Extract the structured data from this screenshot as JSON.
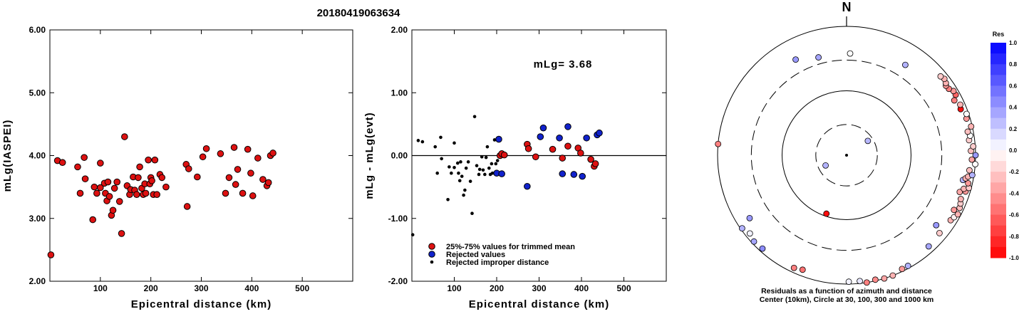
{
  "figure_title": "20180419063634",
  "chart_data": [
    {
      "type": "scatter",
      "id": "magnitude_vs_distance",
      "xlabel": "Epicentral distance (km)",
      "ylabel": "mLg(IASPEI)",
      "xlim": [
        0,
        600
      ],
      "ylim": [
        2.0,
        6.0
      ],
      "xticks": [
        100,
        200,
        300,
        400,
        500
      ],
      "yticks": [
        "2.00",
        "3.00",
        "4.00",
        "5.00",
        "6.00"
      ],
      "marker_color": "#dd1111",
      "points": [
        [
          2,
          2.42
        ],
        [
          15,
          3.92
        ],
        [
          25,
          3.89
        ],
        [
          55,
          3.82
        ],
        [
          60,
          3.4
        ],
        [
          68,
          3.97
        ],
        [
          70,
          3.63
        ],
        [
          85,
          2.98
        ],
        [
          88,
          3.5
        ],
        [
          93,
          3.4
        ],
        [
          100,
          3.88
        ],
        [
          100,
          3.49
        ],
        [
          108,
          3.56
        ],
        [
          110,
          3.4
        ],
        [
          113,
          3.28
        ],
        [
          115,
          3.58
        ],
        [
          118,
          3.35
        ],
        [
          122,
          3.05
        ],
        [
          125,
          3.13
        ],
        [
          128,
          3.48
        ],
        [
          133,
          3.58
        ],
        [
          138,
          3.27
        ],
        [
          142,
          2.76
        ],
        [
          148,
          4.3
        ],
        [
          153,
          3.52
        ],
        [
          158,
          3.38
        ],
        [
          160,
          3.46
        ],
        [
          165,
          3.66
        ],
        [
          168,
          3.45
        ],
        [
          172,
          3.38
        ],
        [
          175,
          3.65
        ],
        [
          178,
          3.82
        ],
        [
          182,
          3.48
        ],
        [
          185,
          3.38
        ],
        [
          188,
          3.55
        ],
        [
          190,
          3.4
        ],
        [
          195,
          3.93
        ],
        [
          198,
          3.55
        ],
        [
          200,
          3.65
        ],
        [
          202,
          3.6
        ],
        [
          205,
          3.38
        ],
        [
          208,
          3.93
        ],
        [
          212,
          3.38
        ],
        [
          218,
          3.7
        ],
        [
          222,
          3.65
        ],
        [
          230,
          3.5
        ],
        [
          270,
          3.86
        ],
        [
          272,
          3.19
        ],
        [
          275,
          3.79
        ],
        [
          292,
          3.66
        ],
        [
          303,
          3.98
        ],
        [
          310,
          4.11
        ],
        [
          338,
          4.03
        ],
        [
          348,
          3.4
        ],
        [
          355,
          3.65
        ],
        [
          365,
          4.13
        ],
        [
          368,
          3.54
        ],
        [
          372,
          3.78
        ],
        [
          382,
          3.4
        ],
        [
          392,
          4.1
        ],
        [
          398,
          3.72
        ],
        [
          402,
          3.36
        ],
        [
          412,
          3.96
        ],
        [
          422,
          3.62
        ],
        [
          430,
          3.52
        ],
        [
          433,
          3.57
        ],
        [
          437,
          4.0
        ],
        [
          442,
          4.04
        ]
      ]
    },
    {
      "type": "scatter",
      "id": "residual_vs_distance",
      "xlabel": "Epicentral distance (km)",
      "ylabel": "mLg - mLg(evt)",
      "xlim": [
        0,
        600
      ],
      "ylim": [
        -2.0,
        2.0
      ],
      "xticks": [
        100,
        200,
        300,
        400,
        500
      ],
      "yticks": [
        "-2.00",
        "-1.00",
        "0.00",
        "1.00",
        "2.00"
      ],
      "zero_line": 0,
      "annotation": "mLg= 3.68",
      "legend": [
        {
          "label": "25%-75% values for trimmed mean",
          "color": "#dd1111",
          "marker": "circle"
        },
        {
          "label": "Rejected values",
          "color": "#1122cc",
          "marker": "circle"
        },
        {
          "label": "Rejected improper distance",
          "color": "#000000",
          "marker": "dot"
        }
      ],
      "series": [
        {
          "name": "25%-75% values for trimmed mean",
          "color": "#dd1111",
          "points": [
            [
              208,
              0.0
            ],
            [
              212,
              0.03
            ],
            [
              218,
              0.01
            ],
            [
              272,
              0.18
            ],
            [
              275,
              0.11
            ],
            [
              292,
              -0.02
            ],
            [
              332,
              0.1
            ],
            [
              355,
              -0.04
            ],
            [
              368,
              0.15
            ],
            [
              392,
              0.12
            ],
            [
              398,
              0.04
            ],
            [
              422,
              -0.06
            ],
            [
              430,
              -0.17
            ],
            [
              433,
              -0.13
            ]
          ]
        },
        {
          "name": "Rejected values",
          "color": "#1122cc",
          "points": [
            [
              200,
              -0.28
            ],
            [
              205,
              0.26
            ],
            [
              212,
              -0.29
            ],
            [
              272,
              -0.49
            ],
            [
              303,
              0.3
            ],
            [
              310,
              0.44
            ],
            [
              348,
              0.28
            ],
            [
              355,
              -0.29
            ],
            [
              368,
              0.46
            ],
            [
              382,
              -0.3
            ],
            [
              402,
              -0.33
            ],
            [
              412,
              0.28
            ],
            [
              437,
              0.33
            ],
            [
              442,
              0.36
            ]
          ]
        },
        {
          "name": "Rejected improper distance",
          "color": "#000000",
          "points": [
            [
              2,
              -1.26
            ],
            [
              15,
              0.24
            ],
            [
              25,
              0.22
            ],
            [
              55,
              0.14
            ],
            [
              60,
              -0.28
            ],
            [
              68,
              0.29
            ],
            [
              70,
              -0.05
            ],
            [
              85,
              -0.7
            ],
            [
              88,
              -0.18
            ],
            [
              93,
              -0.28
            ],
            [
              100,
              0.2
            ],
            [
              100,
              -0.19
            ],
            [
              108,
              -0.12
            ],
            [
              110,
              -0.28
            ],
            [
              113,
              -0.4
            ],
            [
              115,
              -0.1
            ],
            [
              118,
              -0.33
            ],
            [
              122,
              -0.63
            ],
            [
              125,
              -0.55
            ],
            [
              128,
              -0.2
            ],
            [
              133,
              -0.1
            ],
            [
              138,
              -0.41
            ],
            [
              142,
              -0.92
            ],
            [
              148,
              0.62
            ],
            [
              153,
              -0.16
            ],
            [
              158,
              -0.3
            ],
            [
              160,
              -0.22
            ],
            [
              165,
              -0.02
            ],
            [
              168,
              -0.23
            ],
            [
              172,
              -0.3
            ],
            [
              175,
              -0.03
            ],
            [
              178,
              0.14
            ],
            [
              182,
              -0.2
            ],
            [
              185,
              -0.3
            ],
            [
              188,
              -0.13
            ],
            [
              190,
              -0.28
            ],
            [
              195,
              0.25
            ],
            [
              198,
              -0.13
            ],
            [
              202,
              -0.08
            ]
          ]
        }
      ]
    },
    {
      "type": "scatter",
      "id": "residual_azimuth_distance",
      "north_label": "N",
      "caption_line1": "Residuals as a function of azimuth and distance",
      "caption_line2": "Center (10km), Circle at 30, 100, 300 and 1000 km",
      "rings_km": [
        30,
        100,
        300,
        1000
      ],
      "colorbar_title": "Res",
      "colorbar_ticks": [
        "1.0",
        "0.8",
        "0.6",
        "0.4",
        "0.2",
        "0.0",
        "-0.2",
        "-0.4",
        "-0.6",
        "-0.8",
        "-1.0"
      ],
      "colorbar_range": [
        -1.0,
        1.0
      ],
      "stations": [
        {
          "az": 56,
          "dist_km": 25,
          "res": 0.28
        },
        {
          "az": 244,
          "dist_km": 23,
          "res": 0.3
        },
        {
          "az": 199,
          "dist_km": 91,
          "res": -0.95
        },
        {
          "az": 332,
          "dist_km": 480,
          "res": 0.4
        },
        {
          "az": 344,
          "dist_km": 380,
          "res": 0.35
        },
        {
          "az": 2,
          "dist_km": 380,
          "res": 0.0
        },
        {
          "az": 33,
          "dist_km": 470,
          "res": 0.3
        },
        {
          "az": 275,
          "dist_km": 1050,
          "res": -0.5
        },
        {
          "az": 237,
          "dist_km": 620,
          "res": 0.4
        },
        {
          "az": 222,
          "dist_km": 890,
          "res": 0.45
        },
        {
          "az": 231,
          "dist_km": 850,
          "res": 0.05
        },
        {
          "az": 227,
          "dist_km": 920,
          "res": 0.35
        },
        {
          "az": 235,
          "dist_km": 950,
          "res": 0.3
        },
        {
          "az": 205,
          "dist_km": 850,
          "res": -0.5
        },
        {
          "az": 201,
          "dist_km": 800,
          "res": -0.55
        },
        {
          "az": 179,
          "dist_km": 920,
          "res": 0.05
        },
        {
          "az": 174,
          "dist_km": 920,
          "res": 0.1
        },
        {
          "az": 171,
          "dist_km": 1070,
          "res": -0.5
        },
        {
          "az": 167,
          "dist_km": 960,
          "res": -0.45
        },
        {
          "az": 163,
          "dist_km": 1000,
          "res": -0.35
        },
        {
          "az": 159,
          "dist_km": 1000,
          "res": -0.3
        },
        {
          "az": 154,
          "dist_km": 920,
          "res": -0.4
        },
        {
          "az": 151,
          "dist_km": 920,
          "res": 0.3
        },
        {
          "az": 138,
          "dist_km": 800,
          "res": 0.35
        },
        {
          "az": 130,
          "dist_km": 760,
          "res": -0.2
        },
        {
          "az": 128,
          "dist_km": 580,
          "res": 0.4
        },
        {
          "az": 122,
          "dist_km": 800,
          "res": -0.3
        },
        {
          "az": 120,
          "dist_km": 840,
          "res": -0.05
        },
        {
          "az": 118,
          "dist_km": 900,
          "res": -0.3
        },
        {
          "az": 117,
          "dist_km": 740,
          "res": -0.4
        },
        {
          "az": 115,
          "dist_km": 860,
          "res": -0.25
        },
        {
          "az": 113,
          "dist_km": 830,
          "res": -0.2
        },
        {
          "az": 111,
          "dist_km": 790,
          "res": -0.3
        },
        {
          "az": 108,
          "dist_km": 700,
          "res": -0.35
        },
        {
          "az": 107,
          "dist_km": 850,
          "res": -0.4
        },
        {
          "az": 106,
          "dist_km": 780,
          "res": -0.3
        },
        {
          "az": 105,
          "dist_km": 920,
          "res": -0.2
        },
        {
          "az": 103,
          "dist_km": 860,
          "res": -0.4
        },
        {
          "az": 102,
          "dist_km": 700,
          "res": 0.3
        },
        {
          "az": 101,
          "dist_km": 760,
          "res": -0.3
        },
        {
          "az": 100,
          "dist_km": 820,
          "res": -0.3
        },
        {
          "az": 99,
          "dist_km": 940,
          "res": 0.3
        },
        {
          "az": 97,
          "dist_km": 830,
          "res": -0.25
        },
        {
          "az": 94,
          "dist_km": 1050,
          "res": 0.0
        },
        {
          "az": 92,
          "dist_km": 880,
          "res": -0.35
        },
        {
          "az": 90,
          "dist_km": 1000,
          "res": 0.4
        },
        {
          "az": 88,
          "dist_km": 850,
          "res": -0.25
        },
        {
          "az": 86,
          "dist_km": 930,
          "res": -0.2
        },
        {
          "az": 83,
          "dist_km": 820,
          "res": -0.2
        },
        {
          "az": 81,
          "dist_km": 870,
          "res": 0.0
        },
        {
          "az": 79,
          "dist_km": 820,
          "res": -0.25
        },
        {
          "az": 77,
          "dist_km": 960,
          "res": -0.3
        },
        {
          "az": 73,
          "dist_km": 880,
          "res": -0.4
        },
        {
          "az": 71,
          "dist_km": 930,
          "res": 0.0
        },
        {
          "az": 68,
          "dist_km": 810,
          "res": -0.95
        },
        {
          "az": 66,
          "dist_km": 850,
          "res": -0.3
        },
        {
          "az": 63,
          "dist_km": 750,
          "res": -0.5
        },
        {
          "az": 61,
          "dist_km": 860,
          "res": -0.6
        },
        {
          "az": 59,
          "dist_km": 860,
          "res": -0.4
        },
        {
          "az": 57,
          "dist_km": 780,
          "res": -0.5
        },
        {
          "az": 55,
          "dist_km": 760,
          "res": -0.4
        },
        {
          "az": 54,
          "dist_km": 800,
          "res": -0.3
        },
        {
          "az": 52,
          "dist_km": 840,
          "res": -0.3
        },
        {
          "az": 50,
          "dist_km": 800,
          "res": -0.2
        }
      ]
    }
  ]
}
